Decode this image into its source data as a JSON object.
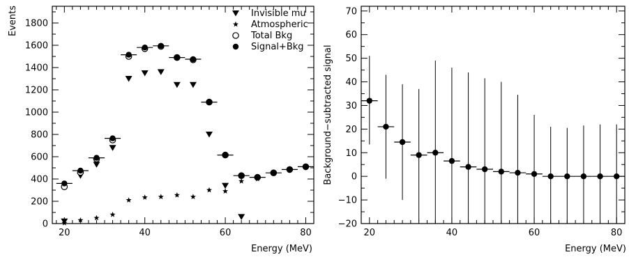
{
  "chart_data": [
    {
      "type": "scatter",
      "xlabel": "Energy (MeV)",
      "ylabel": "Events",
      "xlim": [
        17,
        82
      ],
      "ylim": [
        0,
        1950
      ],
      "x_ticks": [
        20,
        40,
        60,
        80
      ],
      "x_tick_labels": [
        "20",
        "40",
        "60",
        "80"
      ],
      "y_ticks": [
        0,
        200,
        400,
        600,
        800,
        1000,
        1200,
        1400,
        1600,
        1800
      ],
      "y_tick_labels": [
        "0",
        "200",
        "400",
        "600",
        "800",
        "1000",
        "1200",
        "1400",
        "1600",
        "1800"
      ],
      "legend_placement": "top-right",
      "bin_width": 4,
      "series": [
        {
          "name": "Invisible mu",
          "marker": "triangle-down",
          "x": [
            20,
            24,
            28,
            32,
            36,
            40,
            44,
            48,
            52,
            56,
            60,
            64
          ],
          "y": [
            20,
            430,
            530,
            680,
            1300,
            1350,
            1360,
            1245,
            1245,
            800,
            340,
            60
          ]
        },
        {
          "name": "Atmospheric",
          "marker": "star",
          "x": [
            20,
            24,
            28,
            32,
            36,
            40,
            44,
            48,
            52,
            56,
            60,
            64,
            68,
            72,
            76,
            80
          ],
          "y": [
            5,
            30,
            50,
            80,
            210,
            235,
            240,
            255,
            240,
            300,
            290,
            380,
            400,
            450,
            480,
            510
          ]
        },
        {
          "name": "Total Bkg",
          "marker": "circle-open",
          "x": [
            20,
            24,
            28,
            32,
            36,
            40,
            44,
            48,
            52,
            56,
            60,
            64,
            68,
            72,
            76,
            80
          ],
          "y": [
            330,
            460,
            580,
            750,
            1500,
            1570,
            1590,
            1490,
            1470,
            1090,
            615,
            430,
            415,
            455,
            485,
            510
          ]
        },
        {
          "name": "Signal+Bkg",
          "marker": "circle-filled",
          "x": [
            20,
            24,
            28,
            32,
            36,
            40,
            44,
            48,
            52,
            56,
            60,
            64,
            68,
            72,
            76,
            80
          ],
          "y": [
            360,
            475,
            590,
            765,
            1515,
            1580,
            1595,
            1490,
            1475,
            1090,
            615,
            430,
            415,
            455,
            485,
            510
          ]
        }
      ]
    },
    {
      "type": "scatter",
      "xlabel": "Energy (MeV)",
      "ylabel": "Background−subtracted signal",
      "xlim": [
        18,
        82
      ],
      "ylim": [
        -20,
        72
      ],
      "x_ticks": [
        20,
        40,
        60,
        80
      ],
      "x_tick_labels": [
        "20",
        "40",
        "60",
        "80"
      ],
      "y_ticks": [
        -20,
        -10,
        0,
        10,
        20,
        30,
        40,
        50,
        60,
        70
      ],
      "y_tick_labels": [
        "−20",
        "−10",
        "0",
        "10",
        "20",
        "30",
        "40",
        "50",
        "60",
        "70"
      ],
      "bin_width": 4,
      "series": [
        {
          "marker": "circle-filled",
          "x": [
            20,
            24,
            28,
            32,
            36,
            40,
            44,
            48,
            52,
            56,
            60,
            64,
            68,
            72,
            76,
            80
          ],
          "y": [
            32,
            21,
            14.5,
            9,
            10,
            6.5,
            4,
            3,
            2,
            1.5,
            1,
            0,
            0,
            0,
            0,
            0
          ],
          "y_err_low": [
            13.5,
            -1,
            -10,
            -19,
            -20,
            -20,
            -20,
            -20,
            -20,
            -20,
            -20,
            -20,
            -20,
            -20,
            -20,
            -20
          ],
          "y_err_high": [
            51,
            43,
            39,
            37,
            49,
            46,
            44,
            41.5,
            40,
            34.5,
            26,
            21,
            20.5,
            21.5,
            22,
            22
          ]
        }
      ]
    }
  ]
}
